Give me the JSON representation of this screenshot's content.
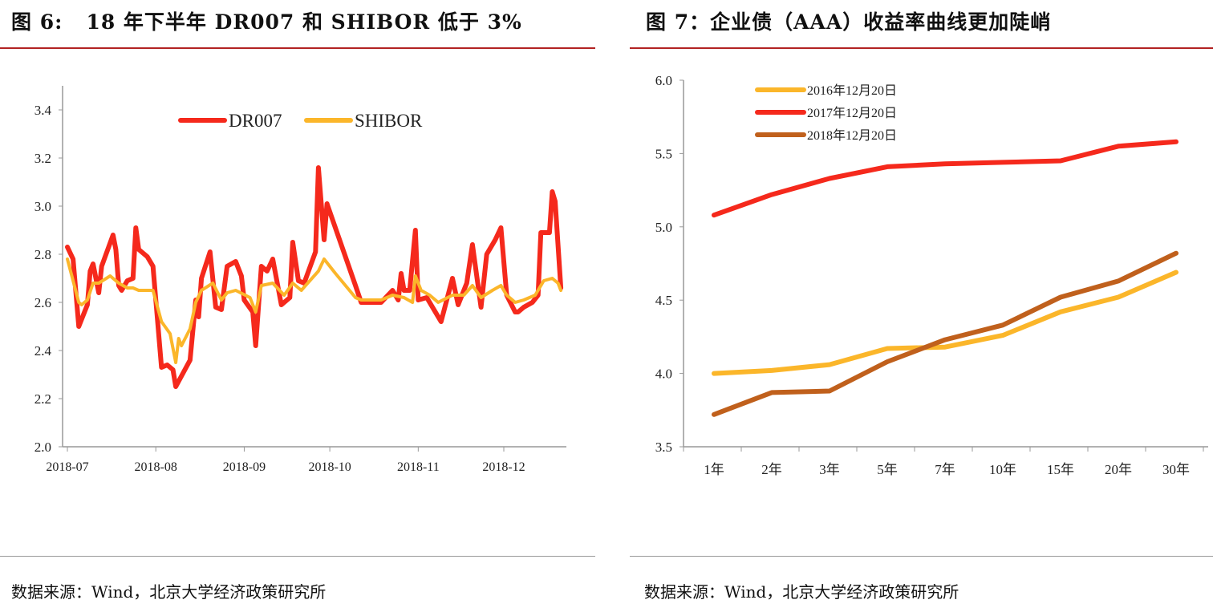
{
  "figures": [
    {
      "title": "图 6:   18 年下半年 DR007 和 SHIBOR 低于 3%",
      "source": "数据来源：Wind，北京大学经济政策研究所"
    },
    {
      "title": "图 7：企业债（AAA）收益率曲线更加陡峭",
      "source": "数据来源：Wind，北京大学经济政策研究所"
    }
  ],
  "chart_data": [
    {
      "type": "line",
      "title": "图 6:   18 年下半年 DR007 和 SHIBOR 低于 3%",
      "xlabel": "",
      "ylabel": "",
      "x_ticks": [
        "2018-07",
        "2018-08",
        "2018-09",
        "2018-10",
        "2018-11",
        "2018-12"
      ],
      "y_ticks": [
        "2.0",
        "2.2",
        "2.4",
        "2.6",
        "2.8",
        "3.0",
        "3.2",
        "3.4"
      ],
      "ylim": [
        2.0,
        3.4
      ],
      "xlim": [
        "2018-07-01",
        "2018-12-21"
      ],
      "grid": false,
      "legend": "top-center",
      "series": [
        {
          "name": "DR007",
          "color": "#f5291c",
          "points": [
            [
              "2018-07-01",
              2.83
            ],
            [
              "2018-07-03",
              2.78
            ],
            [
              "2018-07-05",
              2.5
            ],
            [
              "2018-07-08",
              2.59
            ],
            [
              "2018-07-09",
              2.73
            ],
            [
              "2018-07-10",
              2.76
            ],
            [
              "2018-07-12",
              2.64
            ],
            [
              "2018-07-13",
              2.75
            ],
            [
              "2018-07-17",
              2.88
            ],
            [
              "2018-07-18",
              2.82
            ],
            [
              "2018-07-19",
              2.67
            ],
            [
              "2018-07-20",
              2.65
            ],
            [
              "2018-07-22",
              2.69
            ],
            [
              "2018-07-24",
              2.7
            ],
            [
              "2018-07-25",
              2.91
            ],
            [
              "2018-07-26",
              2.82
            ],
            [
              "2018-07-29",
              2.79
            ],
            [
              "2018-07-31",
              2.75
            ],
            [
              "2018-08-03",
              2.33
            ],
            [
              "2018-08-05",
              2.34
            ],
            [
              "2018-08-07",
              2.32
            ],
            [
              "2018-08-08",
              2.25
            ],
            [
              "2018-08-13",
              2.36
            ],
            [
              "2018-08-15",
              2.61
            ],
            [
              "2018-08-16",
              2.54
            ],
            [
              "2018-08-17",
              2.7
            ],
            [
              "2018-08-20",
              2.81
            ],
            [
              "2018-08-22",
              2.58
            ],
            [
              "2018-08-24",
              2.57
            ],
            [
              "2018-08-26",
              2.75
            ],
            [
              "2018-08-29",
              2.77
            ],
            [
              "2018-08-31",
              2.71
            ],
            [
              "2018-09-01",
              2.61
            ],
            [
              "2018-09-04",
              2.56
            ],
            [
              "2018-09-05",
              2.42
            ],
            [
              "2018-09-07",
              2.75
            ],
            [
              "2018-09-09",
              2.73
            ],
            [
              "2018-09-11",
              2.78
            ],
            [
              "2018-09-14",
              2.59
            ],
            [
              "2018-09-17",
              2.62
            ],
            [
              "2018-09-18",
              2.85
            ],
            [
              "2018-09-20",
              2.69
            ],
            [
              "2018-09-22",
              2.68
            ],
            [
              "2018-09-26",
              2.81
            ],
            [
              "2018-09-27",
              3.16
            ],
            [
              "2018-09-29",
              2.86
            ],
            [
              "2018-09-30",
              3.01
            ],
            [
              "2018-10-10",
              2.67
            ],
            [
              "2018-10-12",
              2.6
            ],
            [
              "2018-10-19",
              2.6
            ],
            [
              "2018-10-23",
              2.65
            ],
            [
              "2018-10-25",
              2.61
            ],
            [
              "2018-10-26",
              2.72
            ],
            [
              "2018-10-27",
              2.65
            ],
            [
              "2018-10-29",
              2.65
            ],
            [
              "2018-10-31",
              2.9
            ],
            [
              "2018-11-01",
              2.61
            ],
            [
              "2018-11-04",
              2.62
            ],
            [
              "2018-11-09",
              2.52
            ],
            [
              "2018-11-13",
              2.7
            ],
            [
              "2018-11-15",
              2.59
            ],
            [
              "2018-11-18",
              2.68
            ],
            [
              "2018-11-20",
              2.84
            ],
            [
              "2018-11-23",
              2.58
            ],
            [
              "2018-11-25",
              2.8
            ],
            [
              "2018-11-28",
              2.86
            ],
            [
              "2018-11-30",
              2.91
            ],
            [
              "2018-12-02",
              2.63
            ],
            [
              "2018-12-05",
              2.56
            ],
            [
              "2018-12-06",
              2.56
            ],
            [
              "2018-12-08",
              2.58
            ],
            [
              "2018-12-11",
              2.6
            ],
            [
              "2018-12-13",
              2.63
            ],
            [
              "2018-12-14",
              2.89
            ],
            [
              "2018-12-17",
              2.89
            ],
            [
              "2018-12-18",
              3.06
            ],
            [
              "2018-12-19",
              3.02
            ],
            [
              "2018-12-21",
              2.66
            ]
          ]
        },
        {
          "name": "SHIBOR",
          "color": "#fbb62a",
          "points": [
            [
              "2018-07-01",
              2.78
            ],
            [
              "2018-07-05",
              2.6
            ],
            [
              "2018-07-06",
              2.59
            ],
            [
              "2018-07-08",
              2.61
            ],
            [
              "2018-07-10",
              2.68
            ],
            [
              "2018-07-12",
              2.68
            ],
            [
              "2018-07-16",
              2.71
            ],
            [
              "2018-07-19",
              2.68
            ],
            [
              "2018-07-22",
              2.66
            ],
            [
              "2018-07-24",
              2.66
            ],
            [
              "2018-07-26",
              2.65
            ],
            [
              "2018-07-31",
              2.65
            ],
            [
              "2018-08-03",
              2.52
            ],
            [
              "2018-08-06",
              2.47
            ],
            [
              "2018-08-08",
              2.35
            ],
            [
              "2018-08-09",
              2.45
            ],
            [
              "2018-08-10",
              2.42
            ],
            [
              "2018-08-13",
              2.49
            ],
            [
              "2018-08-15",
              2.6
            ],
            [
              "2018-08-17",
              2.65
            ],
            [
              "2018-08-21",
              2.68
            ],
            [
              "2018-08-24",
              2.61
            ],
            [
              "2018-08-26",
              2.64
            ],
            [
              "2018-08-29",
              2.65
            ],
            [
              "2018-09-03",
              2.62
            ],
            [
              "2018-09-05",
              2.56
            ],
            [
              "2018-09-07",
              2.67
            ],
            [
              "2018-09-11",
              2.68
            ],
            [
              "2018-09-15",
              2.63
            ],
            [
              "2018-09-18",
              2.68
            ],
            [
              "2018-09-21",
              2.65
            ],
            [
              "2018-09-27",
              2.73
            ],
            [
              "2018-09-29",
              2.78
            ],
            [
              "2018-10-03",
              2.72
            ],
            [
              "2018-10-10",
              2.62
            ],
            [
              "2018-10-12",
              2.61
            ],
            [
              "2018-10-19",
              2.61
            ],
            [
              "2018-10-23",
              2.63
            ],
            [
              "2018-10-27",
              2.62
            ],
            [
              "2018-10-30",
              2.6
            ],
            [
              "2018-10-31",
              2.71
            ],
            [
              "2018-11-02",
              2.65
            ],
            [
              "2018-11-05",
              2.63
            ],
            [
              "2018-11-08",
              2.6
            ],
            [
              "2018-11-13",
              2.63
            ],
            [
              "2018-11-17",
              2.63
            ],
            [
              "2018-11-20",
              2.67
            ],
            [
              "2018-11-23",
              2.62
            ],
            [
              "2018-11-27",
              2.65
            ],
            [
              "2018-11-30",
              2.67
            ],
            [
              "2018-12-02",
              2.63
            ],
            [
              "2018-12-05",
              2.6
            ],
            [
              "2018-12-08",
              2.61
            ],
            [
              "2018-12-12",
              2.63
            ],
            [
              "2018-12-15",
              2.69
            ],
            [
              "2018-12-18",
              2.7
            ],
            [
              "2018-12-20",
              2.68
            ],
            [
              "2018-12-21",
              2.65
            ]
          ]
        }
      ]
    },
    {
      "type": "line",
      "title": "图 7：企业债（AAA）收益率曲线更加陡峭",
      "xlabel": "",
      "ylabel": "",
      "categories": [
        "1年",
        "2年",
        "3年",
        "5年",
        "7年",
        "10年",
        "15年",
        "20年",
        "30年"
      ],
      "y_ticks": [
        "3.5",
        "4.0",
        "4.5",
        "5.0",
        "5.5",
        "6.0"
      ],
      "ylim": [
        3.5,
        6.0
      ],
      "grid": false,
      "legend": "top-left",
      "series": [
        {
          "name": "2016年12月20日",
          "color": "#fbb62a",
          "values": [
            4.0,
            4.02,
            4.06,
            4.17,
            4.18,
            4.26,
            4.42,
            4.52,
            4.69
          ]
        },
        {
          "name": "2017年12月20日",
          "color": "#f5291c",
          "values": [
            5.08,
            5.22,
            5.33,
            5.41,
            5.43,
            5.44,
            5.45,
            5.55,
            5.58
          ]
        },
        {
          "name": "2018年12月20日",
          "color": "#c0601c",
          "values": [
            3.72,
            3.87,
            3.88,
            4.08,
            4.23,
            4.33,
            4.52,
            4.63,
            4.82
          ]
        }
      ]
    }
  ]
}
